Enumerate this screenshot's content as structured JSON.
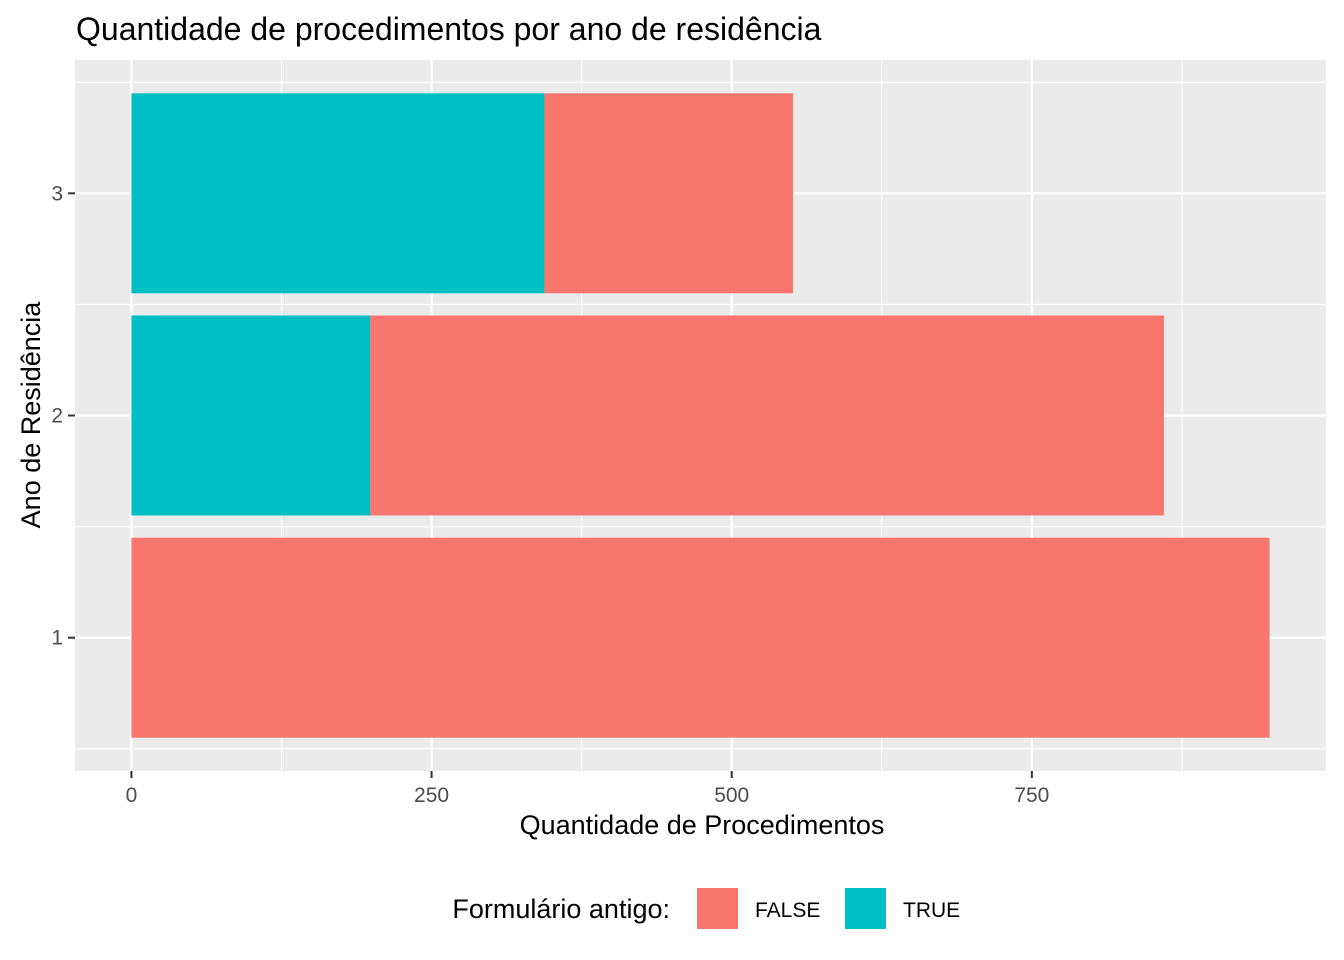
{
  "chart_data": {
    "type": "bar",
    "orientation": "horizontal",
    "stacked": true,
    "title": "Quantidade de procedimentos por ano de residência",
    "xlabel": "Quantidade de Procedimentos",
    "ylabel": "Ano de Residência",
    "categories": [
      "1",
      "2",
      "3"
    ],
    "series": [
      {
        "name": "FALSE",
        "color": "#F8766D",
        "values": [
          948,
          661,
          207
        ]
      },
      {
        "name": "TRUE",
        "color": "#00BFC4",
        "values": [
          0,
          199,
          344
        ]
      }
    ],
    "xlim": [
      -47,
      995
    ],
    "x_ticks": [
      "0",
      "250",
      "500",
      "750"
    ],
    "x_tick_values": [
      0,
      250,
      500,
      750
    ],
    "x_minor_ticks": [
      125,
      375,
      625,
      875
    ],
    "grid": true,
    "legend": {
      "title": "Formulário antigo:",
      "position": "bottom",
      "entries": [
        "FALSE",
        "TRUE"
      ]
    },
    "panel_background": "#EBEBEB"
  }
}
